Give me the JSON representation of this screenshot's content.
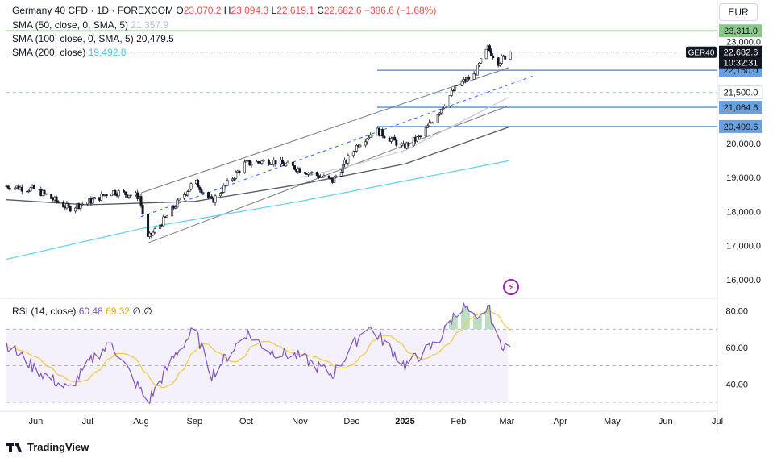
{
  "header": {
    "symbol_line": "Germany 40 CFD · 1D · FOREXCOM",
    "ohlc": [
      {
        "label": "O",
        "value": "23,070.2"
      },
      {
        "label": "H",
        "value": "23,094.3"
      },
      {
        "label": "L",
        "value": "22,619.1"
      },
      {
        "label": "C",
        "value": "22,682.6"
      }
    ],
    "change": "−386.6 (−1.68%)",
    "currency": "EUR"
  },
  "indicators": {
    "sma50_label": "SMA (50, close, 0, SMA, 5)",
    "sma50_value": "21,357.9",
    "sma100_label": "SMA (100, close, 0, SMA, 5)",
    "sma100_value": "20,479.5",
    "sma200_label": "SMA (200, close)",
    "sma200_value": "19,492.8",
    "rsi_label": "RSI (14, close)",
    "rsi_value": "60.48",
    "rsi_ma_value": "69.32",
    "rsi_extra1": "∅",
    "rsi_extra2": "∅"
  },
  "branding": "TradingView",
  "colors": {
    "up": "#26a69a",
    "candle": "#131722",
    "sma50": "#c8cbd2",
    "sma100": "#555a64",
    "sma200": "#5fd3e6",
    "level": "#6aa0e0",
    "rsi_line": "#7e57c2",
    "rsi_ma": "#f2c94c",
    "resistance": "#8bc88a"
  },
  "chart_data": {
    "type": "candlestick",
    "title": "Germany 40 CFD",
    "price_ylim": [
      15500,
      23600
    ],
    "rsi_ylim": [
      26,
      86
    ],
    "price_ticks": [
      "16,000.0",
      "17,000.0",
      "18,000.0",
      "19,000.0",
      "20,000.0",
      "23,000.0"
    ],
    "price_tick_values": [
      16000,
      17000,
      18000,
      19000,
      20000,
      23000
    ],
    "rsi_ticks": [
      "40.00",
      "60.00",
      "80.00"
    ],
    "rsi_tick_values": [
      40,
      60,
      80
    ],
    "x_labels": [
      "Jun",
      "Jul",
      "Aug",
      "Sep",
      "Oct",
      "Nov",
      "Dec",
      "2025",
      "Feb",
      "Mar",
      "Apr",
      "May",
      "Jun",
      "Jul"
    ],
    "x_label_dates": [
      "2024-06-01",
      "2024-07-01",
      "2024-08-01",
      "2024-09-01",
      "2024-10-01",
      "2024-11-01",
      "2024-12-01",
      "2025-01-01",
      "2025-02-01",
      "2025-03-01",
      "2025-04-01",
      "2025-05-01",
      "2025-06-01",
      "2025-07-01"
    ],
    "x_range": [
      "2024-05-15",
      "2025-07-01"
    ],
    "levels": [
      {
        "label": "23,311.0",
        "value": 23311,
        "style": "resistance"
      },
      {
        "label": "22,150.0",
        "value": 22150,
        "style": "solid"
      },
      {
        "label": "21,500.0",
        "value": 21500,
        "style": "dashed"
      },
      {
        "label": "21,064.6",
        "value": 21064.6,
        "style": "solid"
      },
      {
        "label": "20,499.6",
        "value": 20499.6,
        "style": "solid"
      }
    ],
    "last_price": {
      "symbol": "GER40",
      "value": "22,682.6",
      "numeric": 22682.6,
      "countdown": "10:32:31"
    },
    "channel": {
      "upper": [
        [
          "2024-08-01",
          18550
        ],
        [
          "2025-03-02",
          22230
        ]
      ],
      "lower": [
        [
          "2024-08-05",
          17080
        ],
        [
          "2025-03-02",
          21110
        ]
      ],
      "mid": [
        [
          "2024-08-01",
          17850
        ],
        [
          "2025-03-02",
          21650
        ]
      ]
    },
    "price_key_points": [
      [
        "2024-05-15",
        18750
      ],
      [
        "2024-06-01",
        18650
      ],
      [
        "2024-06-20",
        18100
      ],
      [
        "2024-07-05",
        18350
      ],
      [
        "2024-07-15",
        18600
      ],
      [
        "2024-07-31",
        18450
      ],
      [
        "2024-08-05",
        17200
      ],
      [
        "2024-08-15",
        17800
      ],
      [
        "2024-09-01",
        18900
      ],
      [
        "2024-09-11",
        18300
      ],
      [
        "2024-09-30",
        19400
      ],
      [
        "2024-10-15",
        19500
      ],
      [
        "2024-11-01",
        19250
      ],
      [
        "2024-11-20",
        18900
      ],
      [
        "2024-12-05",
        20000
      ],
      [
        "2024-12-15",
        20400
      ],
      [
        "2024-12-31",
        19900
      ],
      [
        "2025-01-10",
        20200
      ],
      [
        "2025-01-20",
        20900
      ],
      [
        "2025-01-31",
        21700
      ],
      [
        "2025-02-10",
        22000
      ],
      [
        "2025-02-18",
        22800
      ],
      [
        "2025-02-24",
        22400
      ],
      [
        "2025-03-03",
        22682.6
      ]
    ],
    "sma_points": {
      "sma50": [
        [
          "2024-11-01",
          19000
        ],
        [
          "2024-12-01",
          19350
        ],
        [
          "2025-01-01",
          19800
        ],
        [
          "2025-02-01",
          20600
        ],
        [
          "2025-03-02",
          21357.9
        ]
      ],
      "sma100": [
        [
          "2024-05-15",
          18350
        ],
        [
          "2024-07-01",
          18200
        ],
        [
          "2024-09-01",
          18300
        ],
        [
          "2024-11-01",
          18800
        ],
        [
          "2025-01-01",
          19400
        ],
        [
          "2025-03-02",
          20479.5
        ]
      ],
      "sma200": [
        [
          "2024-05-15",
          16600
        ],
        [
          "2024-08-01",
          17500
        ],
        [
          "2024-11-01",
          18300
        ],
        [
          "2025-01-01",
          18900
        ],
        [
          "2025-03-02",
          19492.8
        ]
      ]
    },
    "rsi_key_points": [
      [
        "2024-05-15",
        62
      ],
      [
        "2024-06-01",
        48
      ],
      [
        "2024-06-20",
        37
      ],
      [
        "2024-07-05",
        55
      ],
      [
        "2024-07-15",
        62
      ],
      [
        "2024-08-05",
        30
      ],
      [
        "2024-08-20",
        55
      ],
      [
        "2024-09-01",
        70
      ],
      [
        "2024-09-11",
        45
      ],
      [
        "2024-10-01",
        68
      ],
      [
        "2024-10-15",
        58
      ],
      [
        "2024-11-01",
        55
      ],
      [
        "2024-11-20",
        45
      ],
      [
        "2024-12-10",
        72
      ],
      [
        "2024-12-20",
        63
      ],
      [
        "2025-01-01",
        50
      ],
      [
        "2025-01-20",
        63
      ],
      [
        "2025-01-31",
        80
      ],
      [
        "2025-02-05",
        82
      ],
      [
        "2025-02-12",
        73
      ],
      [
        "2025-02-18",
        83
      ],
      [
        "2025-02-24",
        63
      ],
      [
        "2025-03-03",
        60.48
      ]
    ],
    "rsi_ma_end": 69.32,
    "rsi_bands": [
      70,
      50,
      30
    ]
  }
}
